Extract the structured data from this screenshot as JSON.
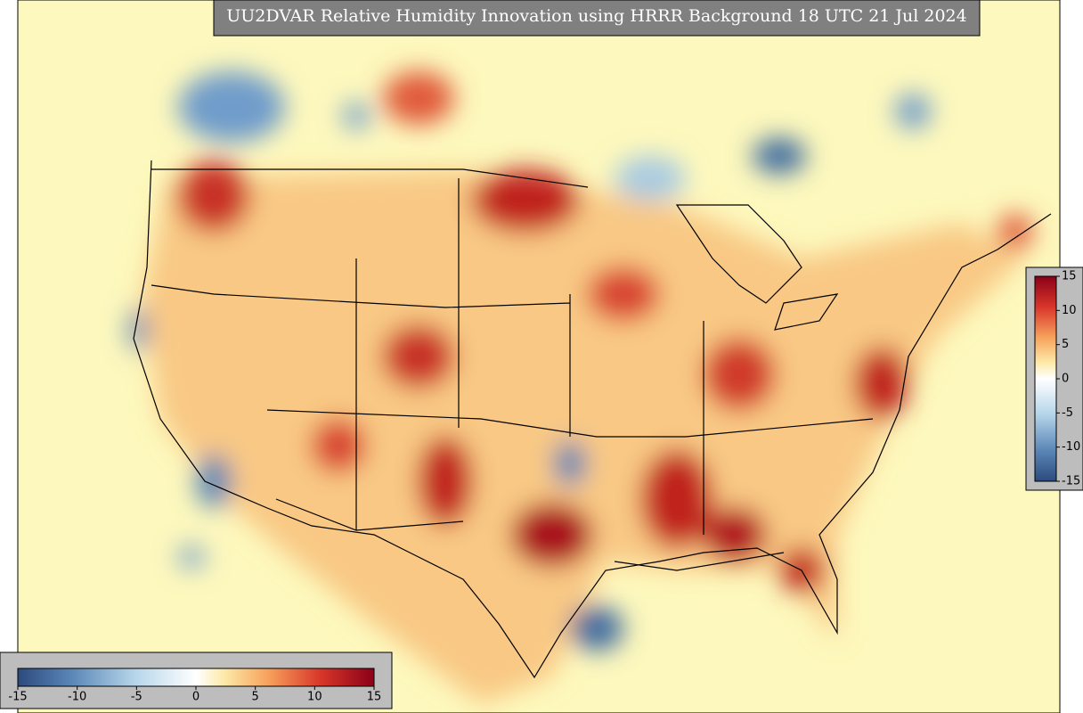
{
  "title": "UU2DVAR Relative Humidity Innovation using HRRR Background 18 UTC 21 Jul 2024",
  "colorbar_right": {
    "lim": [
      -15,
      15
    ],
    "ticks": [
      15,
      10,
      5,
      0,
      -5,
      -10,
      -15
    ]
  },
  "colorbar_bottom": {
    "lim": [
      -15,
      15
    ],
    "ticks": [
      -15,
      -10,
      -5,
      0,
      5,
      10,
      15
    ]
  }
}
